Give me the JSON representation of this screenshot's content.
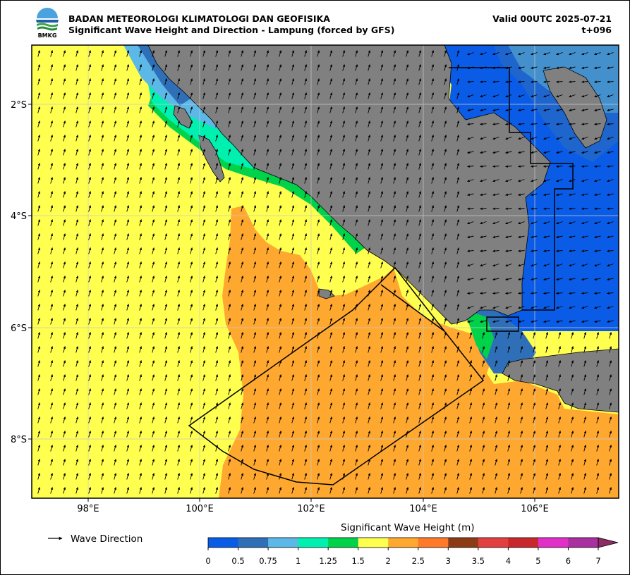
{
  "header": {
    "agency": "BADAN METEOROLOGI KLIMATOLOGI DAN GEOFISIKA",
    "product": "Significant Wave Height and Direction - Lampung (forced by GFS)",
    "valid": "Valid 00UTC 2025-07-21",
    "lead": "t+096",
    "logo_text": "BMKG"
  },
  "map": {
    "lon_range": [
      97.0,
      107.5
    ],
    "lat_range": [
      -9.1,
      -1.0
    ],
    "lon_ticks": [
      "98°E",
      "100°E",
      "102°E",
      "104°E",
      "106°E"
    ],
    "lat_ticks": [
      "2°S",
      "4°S",
      "6°S",
      "8°S"
    ],
    "land_color": "#808080",
    "gridlines": true,
    "arrow_color": "#000000",
    "dominant_wave_direction_west": "north-northeast",
    "dominant_wave_direction_east": "west"
  },
  "legend": {
    "wave_direction_label": "Wave Direction",
    "colorbar_title": "Significant Wave Height (m)",
    "colorbar_ticks": [
      "0",
      "0.5",
      "0.75",
      "1",
      "1.25",
      "1.5",
      "2",
      "2.5",
      "3",
      "3.5",
      "4",
      "5",
      "6",
      "7"
    ],
    "colorbar_colors": [
      "#0a5ce6",
      "#2f6fb8",
      "#5cb8e6",
      "#00f0b0",
      "#00d24a",
      "#ffff50",
      "#ffa830",
      "#ff7a28",
      "#8c3c14",
      "#e24040",
      "#c8282c",
      "#e030c8",
      "#a830a0"
    ],
    "extend_color": "#8c2c64"
  }
}
